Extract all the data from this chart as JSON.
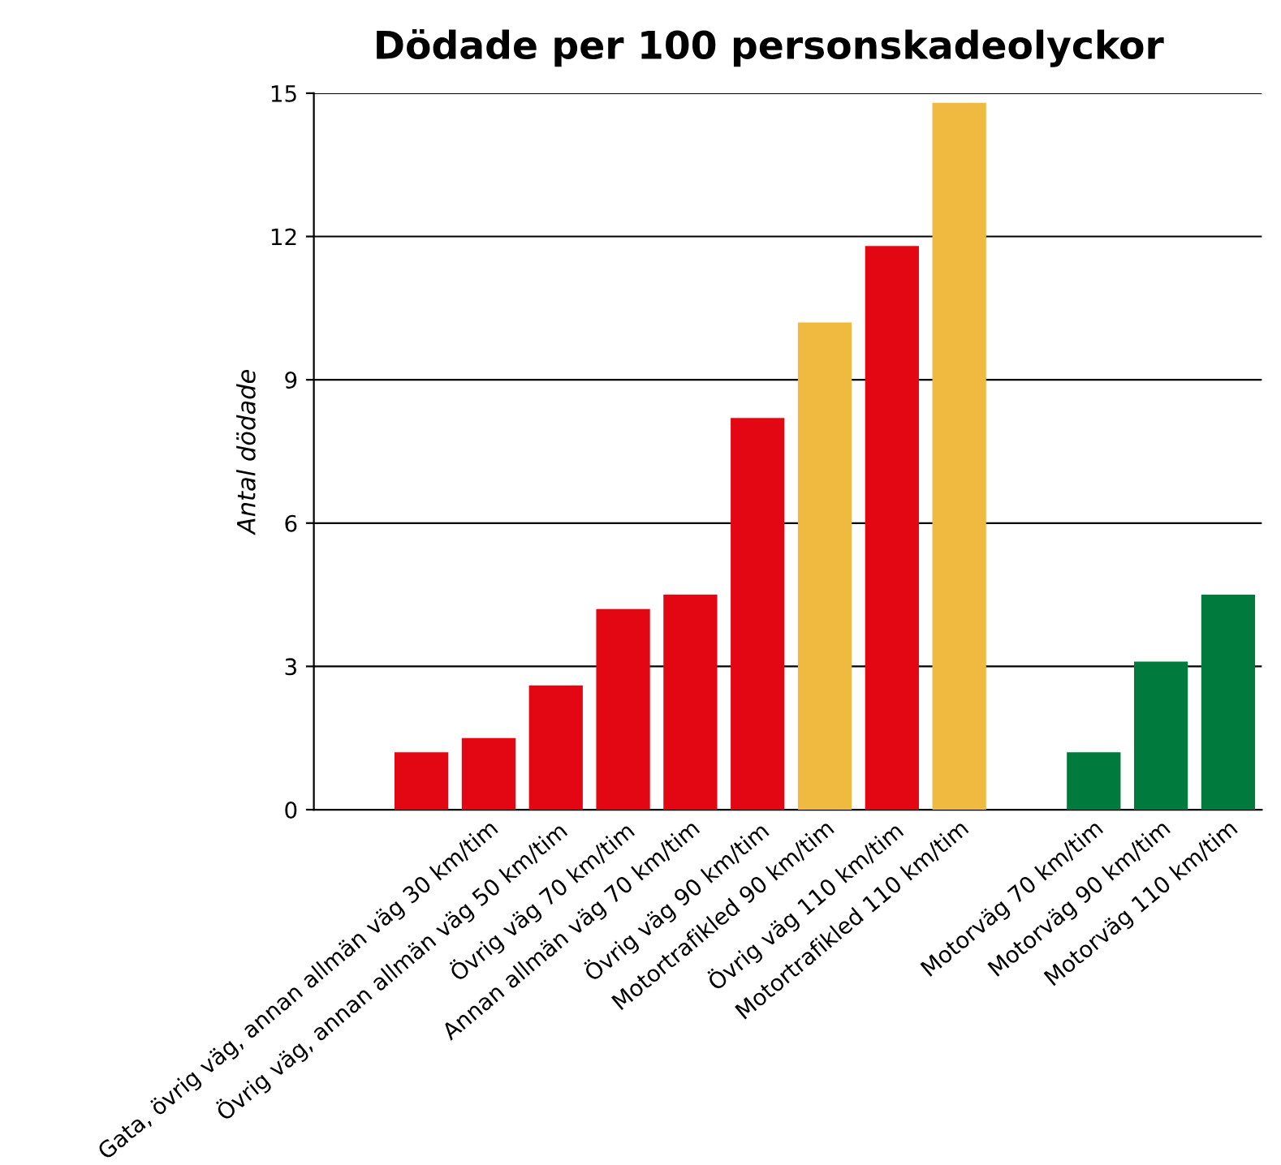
{
  "chart_data": {
    "type": "bar",
    "title": "Dödade per 100 personskadeolyckor",
    "ylabel": "Antal dödade",
    "categories": [
      null,
      null,
      "Gata, övrig väg, annan allmän väg 30 km/tim",
      "Övrig väg, annan allmän väg 50 km/tim",
      "Övrig väg 70 km/tim",
      "Annan allmän väg 70 km/tim",
      "Övrig väg 90 km/tim",
      "Motortrafikled 90 km/tim",
      "Övrig väg 110 km/tim",
      "Motortrafikled 110 km/tim",
      null,
      "Motorväg 70 km/tim",
      "Motorväg 90 km/tim",
      "Motorväg 110 km/tim"
    ],
    "values": [
      null,
      1.2,
      1.5,
      2.6,
      4.2,
      4.5,
      8.2,
      10.2,
      11.8,
      14.8,
      null,
      1.2,
      3.1,
      4.5
    ],
    "colors": [
      "#e30613",
      "#e30613",
      "#e30613",
      "#e30613",
      "#e30613",
      "#e30613",
      "#e30613",
      "#f0b93f",
      "#e30613",
      "#f0b93f",
      "#e30613",
      "#007a3d",
      "#007a3d",
      "#007a3d"
    ],
    "ylim": [
      0,
      15
    ],
    "yticks": [
      0,
      3,
      6,
      9,
      12,
      15
    ],
    "grid": "y",
    "legend": false
  }
}
